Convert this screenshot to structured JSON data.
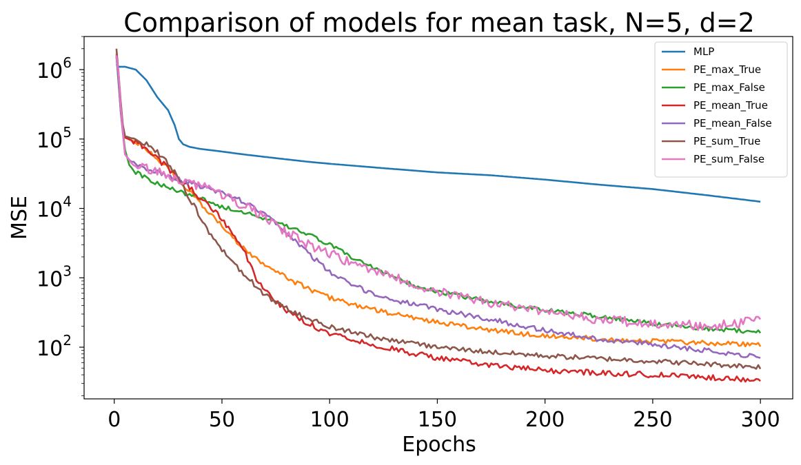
{
  "chart_data": {
    "type": "line",
    "title": "Comparison of models for mean task, N=5, d=2",
    "xlabel": "Epochs",
    "ylabel": "MSE",
    "yscale": "log",
    "xlim": [
      -14,
      315
    ],
    "ylim": [
      18,
      3000000
    ],
    "xticks": [
      0,
      50,
      100,
      150,
      200,
      250,
      300
    ],
    "yticks": [
      {
        "base": "10",
        "exp": "2",
        "value": 100
      },
      {
        "base": "10",
        "exp": "3",
        "value": 1000
      },
      {
        "base": "10",
        "exp": "4",
        "value": 10000
      },
      {
        "base": "10",
        "exp": "5",
        "value": 100000
      },
      {
        "base": "10",
        "exp": "6",
        "value": 1000000
      }
    ],
    "grid": false,
    "legend_position": "top-right",
    "series": [
      {
        "name": "MLP",
        "color": "#1f77b4",
        "noise": 0,
        "points": [
          [
            1,
            1200000
          ],
          [
            2,
            1100000
          ],
          [
            5,
            1100000
          ],
          [
            10,
            1000000
          ],
          [
            15,
            700000
          ],
          [
            20,
            400000
          ],
          [
            25,
            260000
          ],
          [
            28,
            160000
          ],
          [
            30,
            100000
          ],
          [
            32,
            84000
          ],
          [
            35,
            77000
          ],
          [
            40,
            72000
          ],
          [
            50,
            66000
          ],
          [
            60,
            60000
          ],
          [
            75,
            53000
          ],
          [
            90,
            47000
          ],
          [
            100,
            44000
          ],
          [
            125,
            38000
          ],
          [
            150,
            33000
          ],
          [
            175,
            30000
          ],
          [
            200,
            26000
          ],
          [
            225,
            22000
          ],
          [
            250,
            19000
          ],
          [
            275,
            15500
          ],
          [
            300,
            12500
          ]
        ]
      },
      {
        "name": "PE_max_True",
        "color": "#ff7f0e",
        "noise": 0.035,
        "points": [
          [
            1,
            1700000
          ],
          [
            2,
            800000
          ],
          [
            3,
            300000
          ],
          [
            4,
            150000
          ],
          [
            5,
            105000
          ],
          [
            10,
            90000
          ],
          [
            15,
            72000
          ],
          [
            20,
            52000
          ],
          [
            25,
            38000
          ],
          [
            30,
            25000
          ],
          [
            35,
            18000
          ],
          [
            40,
            12000
          ],
          [
            45,
            8000
          ],
          [
            50,
            5500
          ],
          [
            55,
            3800
          ],
          [
            60,
            2700
          ],
          [
            65,
            2000
          ],
          [
            70,
            1600
          ],
          [
            75,
            1250
          ],
          [
            80,
            1000
          ],
          [
            90,
            700
          ],
          [
            100,
            520
          ],
          [
            110,
            420
          ],
          [
            125,
            320
          ],
          [
            150,
            230
          ],
          [
            175,
            175
          ],
          [
            200,
            145
          ],
          [
            250,
            122
          ],
          [
            300,
            108
          ]
        ]
      },
      {
        "name": "PE_max_False",
        "color": "#2ca02c",
        "noise": 0.03,
        "points": [
          [
            1,
            1600000
          ],
          [
            3,
            250000
          ],
          [
            5,
            70000
          ],
          [
            7,
            42000
          ],
          [
            10,
            33000
          ],
          [
            20,
            23000
          ],
          [
            30,
            17500
          ],
          [
            40,
            14000
          ],
          [
            50,
            10500
          ],
          [
            60,
            9000
          ],
          [
            70,
            7000
          ],
          [
            80,
            5500
          ],
          [
            90,
            4200
          ],
          [
            100,
            3000
          ],
          [
            110,
            2000
          ],
          [
            125,
            1200
          ],
          [
            140,
            760
          ],
          [
            150,
            630
          ],
          [
            175,
            450
          ],
          [
            200,
            340
          ],
          [
            225,
            280
          ],
          [
            250,
            220
          ],
          [
            275,
            185
          ],
          [
            300,
            165
          ]
        ]
      },
      {
        "name": "PE_mean_True",
        "color": "#d62728",
        "noise": 0.04,
        "points": [
          [
            1,
            1600000
          ],
          [
            2,
            800000
          ],
          [
            3,
            300000
          ],
          [
            4,
            150000
          ],
          [
            5,
            105000
          ],
          [
            10,
            90000
          ],
          [
            15,
            72000
          ],
          [
            20,
            52000
          ],
          [
            25,
            38000
          ],
          [
            30,
            27000
          ],
          [
            35,
            20000
          ],
          [
            40,
            14000
          ],
          [
            45,
            10000
          ],
          [
            50,
            7000
          ],
          [
            55,
            4500
          ],
          [
            60,
            2500
          ],
          [
            63,
            1600
          ],
          [
            65,
            1100
          ],
          [
            70,
            650
          ],
          [
            75,
            450
          ],
          [
            80,
            330
          ],
          [
            90,
            220
          ],
          [
            100,
            160
          ],
          [
            125,
            100
          ],
          [
            150,
            70
          ],
          [
            175,
            55
          ],
          [
            200,
            46
          ],
          [
            250,
            40
          ],
          [
            300,
            34
          ]
        ]
      },
      {
        "name": "PE_mean_False",
        "color": "#9467bd",
        "noise": 0.035,
        "points": [
          [
            1,
            1500000
          ],
          [
            2,
            700000
          ],
          [
            3,
            250000
          ],
          [
            5,
            60000
          ],
          [
            7,
            50000
          ],
          [
            10,
            42000
          ],
          [
            20,
            33000
          ],
          [
            30,
            26000
          ],
          [
            40,
            21000
          ],
          [
            50,
            17000
          ],
          [
            60,
            12500
          ],
          [
            70,
            8000
          ],
          [
            75,
            6000
          ],
          [
            80,
            4500
          ],
          [
            90,
            2300
          ],
          [
            100,
            1200
          ],
          [
            110,
            800
          ],
          [
            125,
            520
          ],
          [
            150,
            350
          ],
          [
            175,
            250
          ],
          [
            200,
            175
          ],
          [
            225,
            130
          ],
          [
            250,
            110
          ],
          [
            275,
            90
          ],
          [
            300,
            72
          ]
        ]
      },
      {
        "name": "PE_sum_True",
        "color": "#8c564b",
        "noise": 0.035,
        "points": [
          [
            1,
            2000000
          ],
          [
            2,
            900000
          ],
          [
            3,
            350000
          ],
          [
            4,
            160000
          ],
          [
            5,
            110000
          ],
          [
            10,
            98000
          ],
          [
            15,
            85000
          ],
          [
            20,
            65000
          ],
          [
            25,
            45000
          ],
          [
            30,
            27000
          ],
          [
            35,
            14000
          ],
          [
            40,
            7500
          ],
          [
            45,
            4000
          ],
          [
            50,
            2500
          ],
          [
            55,
            1700
          ],
          [
            60,
            1150
          ],
          [
            65,
            800
          ],
          [
            70,
            560
          ],
          [
            75,
            450
          ],
          [
            80,
            360
          ],
          [
            90,
            260
          ],
          [
            100,
            200
          ],
          [
            125,
            130
          ],
          [
            150,
            100
          ],
          [
            175,
            85
          ],
          [
            200,
            75
          ],
          [
            250,
            63
          ],
          [
            300,
            52
          ]
        ]
      },
      {
        "name": "PE_sum_False",
        "color": "#e377c2",
        "noise": 0.07,
        "points": [
          [
            1,
            1600000
          ],
          [
            2,
            900000
          ],
          [
            3,
            300000
          ],
          [
            5,
            60000
          ],
          [
            8,
            45000
          ],
          [
            10,
            42000
          ],
          [
            20,
            33000
          ],
          [
            30,
            26000
          ],
          [
            40,
            21000
          ],
          [
            50,
            16000
          ],
          [
            60,
            11000
          ],
          [
            70,
            7500
          ],
          [
            80,
            4500
          ],
          [
            90,
            3000
          ],
          [
            100,
            2300
          ],
          [
            110,
            1600
          ],
          [
            125,
            1100
          ],
          [
            140,
            800
          ],
          [
            150,
            620
          ],
          [
            175,
            440
          ],
          [
            200,
            320
          ],
          [
            225,
            250
          ],
          [
            250,
            220
          ],
          [
            275,
            200
          ],
          [
            300,
            240
          ]
        ]
      }
    ]
  }
}
